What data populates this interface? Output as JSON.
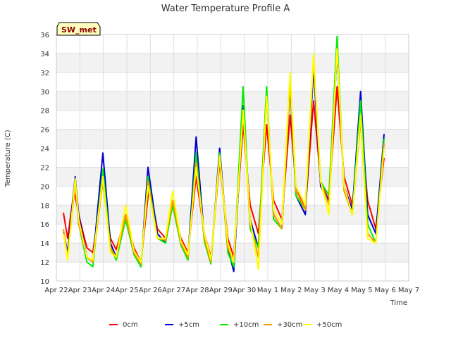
{
  "chart_data": {
    "type": "line",
    "title": "Water Temperature Profile A",
    "xlabel": "Time",
    "ylabel": "Temperature (C)",
    "badge": "SW_met",
    "ylim": [
      10,
      36
    ],
    "yticks": [
      10,
      12,
      14,
      16,
      18,
      20,
      22,
      24,
      26,
      28,
      30,
      32,
      34,
      36
    ],
    "xlim": [
      0,
      15
    ],
    "xticks": [
      {
        "x": 0,
        "label": "Apr 22"
      },
      {
        "x": 1,
        "label": "Apr 23"
      },
      {
        "x": 2,
        "label": "Apr 24"
      },
      {
        "x": 3,
        "label": "Apr 25"
      },
      {
        "x": 4,
        "label": "Apr 26"
      },
      {
        "x": 5,
        "label": "Apr 27"
      },
      {
        "x": 6,
        "label": "Apr 28"
      },
      {
        "x": 7,
        "label": "Apr 29"
      },
      {
        "x": 8,
        "label": "Apr 30"
      },
      {
        "x": 9,
        "label": "May 1"
      },
      {
        "x": 10,
        "label": "May 2"
      },
      {
        "x": 11,
        "label": "May 3"
      },
      {
        "x": 12,
        "label": "May 4"
      },
      {
        "x": 13,
        "label": "May 5"
      },
      {
        "x": 14,
        "label": "May 6"
      },
      {
        "x": 15,
        "label": "May 7"
      }
    ],
    "grid": true,
    "legend_position": "bottom",
    "series": [
      {
        "name": "0cm",
        "color": "#ff0000",
        "x": [
          0.3,
          0.48,
          0.75,
          0.95,
          1.3,
          1.55,
          1.98,
          2.3,
          2.55,
          2.95,
          3.3,
          3.6,
          3.95,
          4.3,
          4.65,
          4.95,
          5.3,
          5.6,
          5.95,
          6.3,
          6.58,
          6.95,
          7.3,
          7.55,
          7.95,
          8.25,
          8.6,
          8.95,
          9.25,
          9.6,
          9.95,
          10.2,
          10.6,
          10.95,
          11.25,
          11.6,
          11.95,
          12.25,
          12.6,
          12.95,
          13.25,
          13.6,
          13.95
        ],
        "y": [
          17.2,
          14.5,
          19.5,
          17.0,
          13.5,
          13.0,
          20.5,
          14.5,
          13.3,
          17.0,
          13.5,
          12.0,
          20.0,
          15.5,
          14.5,
          18.0,
          14.5,
          13.0,
          21.0,
          15.0,
          12.5,
          22.5,
          14.5,
          12.5,
          26.5,
          18.0,
          15.0,
          26.5,
          18.5,
          16.5,
          27.5,
          20.0,
          17.5,
          29.0,
          20.5,
          18.5,
          30.5,
          21.0,
          18.0,
          27.0,
          18.5,
          15.5,
          23.0
        ]
      },
      {
        "name": "+5cm",
        "color": "#0000cc",
        "x": [
          0.3,
          0.48,
          0.8,
          0.95,
          1.3,
          1.55,
          1.98,
          2.3,
          2.55,
          2.95,
          3.3,
          3.6,
          3.9,
          4.3,
          4.65,
          4.95,
          5.3,
          5.6,
          5.95,
          6.3,
          6.58,
          6.95,
          7.3,
          7.55,
          7.95,
          8.25,
          8.6,
          8.95,
          9.25,
          9.6,
          9.95,
          10.2,
          10.6,
          10.95,
          11.25,
          11.6,
          11.95,
          12.25,
          12.6,
          12.95,
          13.25,
          13.6,
          13.95
        ],
        "y": [
          15.2,
          13.0,
          21.0,
          17.0,
          12.5,
          12.0,
          23.5,
          14.0,
          12.5,
          16.5,
          13.0,
          11.5,
          22.0,
          15.0,
          14.0,
          18.5,
          14.0,
          12.5,
          25.2,
          14.5,
          12.0,
          24.0,
          13.5,
          11.0,
          28.5,
          16.5,
          13.5,
          29.5,
          17.0,
          15.5,
          30.5,
          19.0,
          17.0,
          32.5,
          20.0,
          18.5,
          34.0,
          20.0,
          17.5,
          30.0,
          17.0,
          15.0,
          25.5
        ]
      },
      {
        "name": "+10cm",
        "color": "#00ee00",
        "x": [
          0.3,
          0.48,
          0.8,
          0.95,
          1.3,
          1.55,
          1.98,
          2.3,
          2.55,
          2.95,
          3.3,
          3.6,
          3.9,
          4.3,
          4.65,
          4.95,
          5.3,
          5.6,
          5.95,
          6.3,
          6.58,
          6.95,
          7.3,
          7.55,
          7.95,
          8.25,
          8.6,
          8.95,
          9.25,
          9.6,
          9.95,
          10.2,
          10.6,
          10.95,
          11.25,
          11.6,
          11.95,
          12.25,
          12.6,
          12.95,
          13.25,
          13.6,
          13.95
        ],
        "y": [
          15.0,
          12.5,
          20.5,
          16.0,
          12.0,
          11.5,
          21.8,
          13.5,
          12.2,
          16.5,
          12.8,
          11.5,
          21.0,
          14.5,
          14.0,
          18.0,
          13.8,
          12.2,
          23.5,
          14.2,
          11.8,
          23.5,
          13.0,
          11.5,
          30.5,
          15.5,
          13.5,
          30.5,
          16.5,
          15.5,
          31.0,
          19.0,
          17.5,
          33.5,
          20.5,
          19.0,
          35.8,
          19.5,
          17.0,
          29.0,
          16.0,
          14.0,
          25.0
        ]
      },
      {
        "name": "+30cm",
        "color": "#ff9900",
        "x": [
          0.3,
          0.48,
          0.8,
          0.95,
          1.3,
          1.55,
          1.98,
          2.3,
          2.55,
          2.95,
          3.3,
          3.6,
          3.9,
          4.3,
          4.65,
          4.95,
          5.3,
          5.6,
          5.95,
          6.3,
          6.58,
          6.95,
          7.3,
          7.55,
          7.95,
          8.25,
          8.6,
          8.95,
          9.25,
          9.6,
          9.95,
          10.2,
          10.6,
          10.95,
          11.25,
          11.6,
          11.95,
          12.25,
          12.6,
          12.95,
          13.25,
          13.6,
          13.95
        ],
        "y": [
          15.5,
          12.5,
          20.2,
          16.0,
          12.5,
          12.0,
          20.5,
          13.5,
          12.5,
          17.0,
          13.0,
          11.8,
          20.5,
          14.5,
          14.3,
          18.5,
          14.0,
          12.5,
          22.5,
          14.5,
          12.0,
          23.0,
          13.5,
          12.0,
          28.0,
          16.0,
          12.5,
          29.5,
          17.0,
          15.5,
          31.0,
          19.5,
          17.5,
          33.5,
          20.5,
          18.0,
          34.5,
          19.5,
          17.0,
          27.0,
          15.0,
          14.0,
          24.5
        ]
      },
      {
        "name": "+50cm",
        "color": "#ffff00",
        "x": [
          0.3,
          0.48,
          0.8,
          0.95,
          1.3,
          1.55,
          1.98,
          2.3,
          2.55,
          2.95,
          3.3,
          3.6,
          3.9,
          4.3,
          4.65,
          4.95,
          5.3,
          5.6,
          5.95,
          6.3,
          6.58,
          6.95,
          7.3,
          7.55,
          7.95,
          8.25,
          8.6,
          8.95,
          9.25,
          9.6,
          9.95,
          10.2,
          10.6,
          10.95,
          11.25,
          11.6,
          11.95,
          12.25,
          12.6,
          12.95,
          13.25,
          13.6,
          13.95
        ],
        "y": [
          15.0,
          12.2,
          20.8,
          16.5,
          12.5,
          12.2,
          21.0,
          13.0,
          12.5,
          18.0,
          13.2,
          12.0,
          20.0,
          14.5,
          14.5,
          19.5,
          14.2,
          12.8,
          22.0,
          15.0,
          12.3,
          23.2,
          14.0,
          12.0,
          28.0,
          16.5,
          11.2,
          29.5,
          17.5,
          16.0,
          32.0,
          20.0,
          18.0,
          34.0,
          20.5,
          17.0,
          34.5,
          20.0,
          17.0,
          27.5,
          14.5,
          14.0,
          24.0
        ]
      }
    ]
  }
}
